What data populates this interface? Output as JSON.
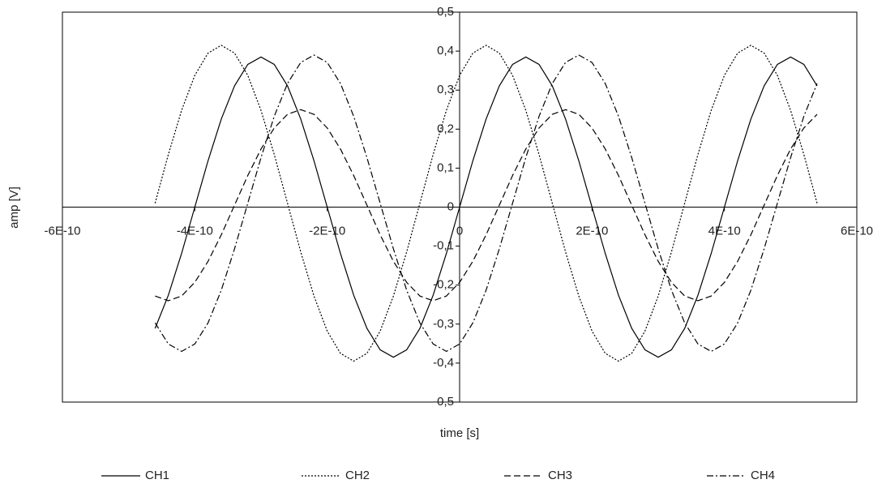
{
  "chart_data": {
    "type": "line",
    "x_label": "time [s]",
    "y_label": "amp [V]",
    "xlim": [
      -6e-10,
      6e-10
    ],
    "ylim": [
      -0.5,
      0.5
    ],
    "xticks": [
      {
        "value": -6e-10,
        "label": "-6E-10"
      },
      {
        "value": -4e-10,
        "label": "-4E-10"
      },
      {
        "value": -2e-10,
        "label": "-2E-10"
      },
      0,
      {
        "value": 2e-10,
        "label": "2E-10"
      },
      {
        "value": 4e-10,
        "label": "4E-10"
      },
      {
        "value": 6e-10,
        "label": "6E-10"
      }
    ],
    "yticks": [
      {
        "value": -0.5,
        "label": "-0,5"
      },
      {
        "value": -0.4,
        "label": "-0,4"
      },
      {
        "value": -0.3,
        "label": "-0,3"
      },
      {
        "value": -0.2,
        "label": "-0,2"
      },
      {
        "value": -0.1,
        "label": "-0,1"
      },
      0,
      {
        "value": 0.1,
        "label": "0,1"
      },
      {
        "value": 0.2,
        "label": "0,2"
      },
      {
        "value": 0.3,
        "label": "0,3"
      },
      {
        "value": 0.4,
        "label": "0,4"
      },
      {
        "value": 0.5,
        "label": "0,5"
      }
    ],
    "x": [
      -4.6e-10,
      -4.4e-10,
      -4.2e-10,
      -4e-10,
      -3.8e-10,
      -3.6e-10,
      -3.4e-10,
      -3.2e-10,
      -3e-10,
      -2.8e-10,
      -2.6e-10,
      -2.4e-10,
      -2.2e-10,
      -2e-10,
      -1.8e-10,
      -1.6e-10,
      -1.4e-10,
      -1.2e-10,
      -1e-10,
      -8e-11,
      -6e-11,
      -4e-11,
      -2e-11,
      0,
      2e-11,
      4e-11,
      6e-11,
      8e-11,
      1e-10,
      1.2e-10,
      1.4e-10,
      1.6e-10,
      1.8e-10,
      2e-10,
      2.2e-10,
      2.4e-10,
      2.6e-10,
      2.8e-10,
      3e-10,
      3.2e-10,
      3.4e-10,
      3.6e-10,
      3.8e-10,
      4e-10,
      4.2e-10,
      4.4e-10,
      4.6e-10,
      4.8e-10,
      5e-10,
      5.2e-10,
      5.4e-10
    ],
    "series": [
      {
        "name": "CH1",
        "color": "#000000",
        "dash": "none",
        "values": [
          -0.311,
          -0.226,
          -0.119,
          0,
          0.119,
          0.226,
          0.311,
          0.366,
          0.385,
          0.366,
          0.311,
          0.226,
          0.119,
          0,
          -0.119,
          -0.226,
          -0.311,
          -0.366,
          -0.385,
          -0.366,
          -0.311,
          -0.226,
          -0.119,
          0,
          0.119,
          0.226,
          0.311,
          0.366,
          0.385,
          0.366,
          0.311,
          0.226,
          0.119,
          0,
          -0.119,
          -0.226,
          -0.311,
          -0.366,
          -0.385,
          -0.366,
          -0.311,
          -0.226,
          -0.119,
          0,
          0.119,
          0.226,
          0.311,
          0.366,
          0.385,
          0.366,
          0.311
        ]
      },
      {
        "name": "CH2",
        "color": "#000000",
        "dash": "2,2",
        "values": [
          0.01,
          0.135,
          0.248,
          0.338,
          0.395,
          0.415,
          0.395,
          0.338,
          0.248,
          0.135,
          0.01,
          -0.115,
          -0.228,
          -0.318,
          -0.375,
          -0.395,
          -0.375,
          -0.318,
          -0.228,
          -0.115,
          0.01,
          0.135,
          0.248,
          0.338,
          0.395,
          0.415,
          0.395,
          0.338,
          0.248,
          0.135,
          0.01,
          -0.115,
          -0.228,
          -0.318,
          -0.375,
          -0.395,
          -0.375,
          -0.318,
          -0.228,
          -0.115,
          0.01,
          0.135,
          0.248,
          0.338,
          0.395,
          0.415,
          0.395,
          0.338,
          0.248,
          0.135,
          0.01
        ]
      },
      {
        "name": "CH3",
        "color": "#000000",
        "dash": "8,4",
        "values": [
          -0.228,
          -0.24,
          -0.228,
          -0.193,
          -0.139,
          -0.071,
          0.005,
          0.081,
          0.149,
          0.203,
          0.238,
          0.25,
          0.238,
          0.203,
          0.149,
          0.081,
          0.005,
          -0.071,
          -0.139,
          -0.193,
          -0.228,
          -0.24,
          -0.228,
          -0.193,
          -0.139,
          -0.071,
          0.005,
          0.081,
          0.149,
          0.203,
          0.238,
          0.25,
          0.238,
          0.203,
          0.149,
          0.081,
          0.005,
          -0.071,
          -0.139,
          -0.193,
          -0.228,
          -0.24,
          -0.228,
          -0.193,
          -0.139,
          -0.071,
          0.005,
          0.081,
          0.149,
          0.203,
          0.238
        ]
      },
      {
        "name": "CH4",
        "color": "#000000",
        "dash": "8,3,2,3",
        "values": [
          -0.297,
          -0.351,
          -0.37,
          -0.351,
          -0.297,
          -0.213,
          -0.107,
          0.01,
          0.127,
          0.233,
          0.317,
          0.371,
          0.39,
          0.371,
          0.317,
          0.233,
          0.127,
          0.01,
          -0.107,
          -0.213,
          -0.297,
          -0.351,
          -0.37,
          -0.351,
          -0.297,
          -0.213,
          -0.107,
          0.01,
          0.127,
          0.233,
          0.317,
          0.371,
          0.39,
          0.371,
          0.317,
          0.233,
          0.127,
          0.01,
          -0.107,
          -0.213,
          -0.297,
          -0.351,
          -0.37,
          -0.351,
          -0.297,
          -0.213,
          -0.107,
          0.01,
          0.127,
          0.233,
          0.317
        ]
      }
    ]
  }
}
